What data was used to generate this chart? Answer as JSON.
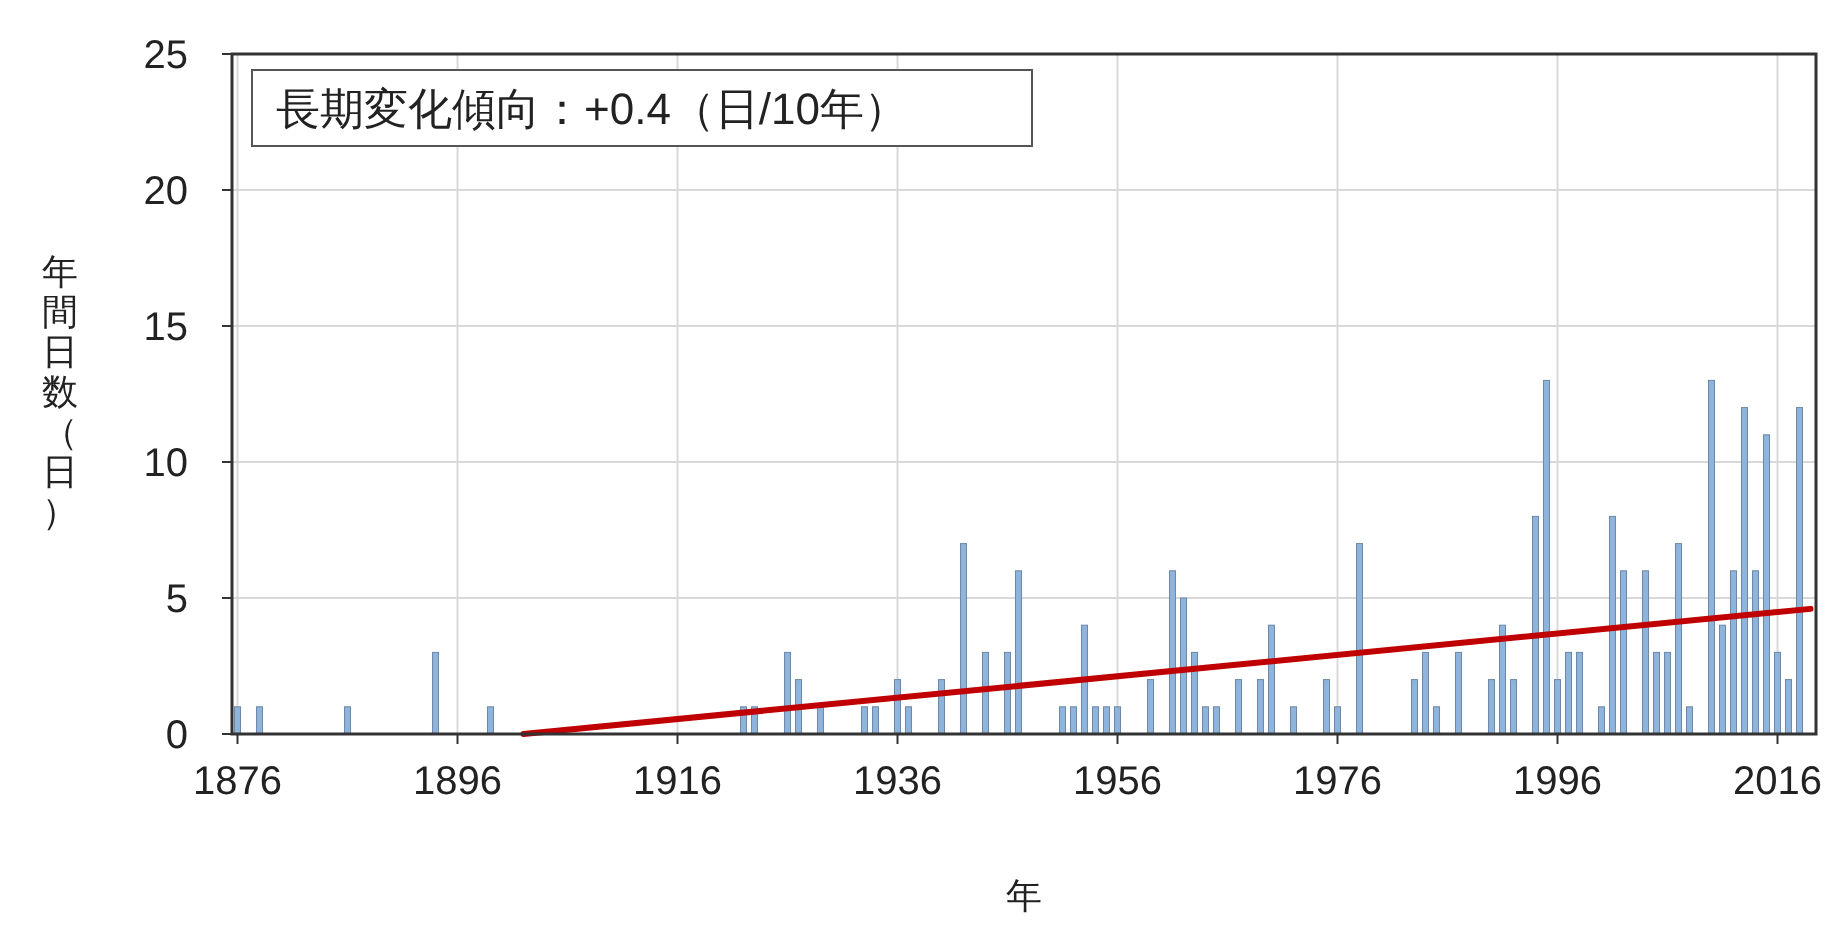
{
  "chart_data": {
    "type": "bar",
    "xlabel": "年",
    "ylabel": "年間日数（日）",
    "annotations": [
      "長期変化傾向：+0.4（日/10年）"
    ],
    "xlim": [
      1875.5,
      2019.5
    ],
    "xticks": [
      1876,
      1896,
      1916,
      1936,
      1956,
      1976,
      1996,
      2016
    ],
    "ylim": [
      0,
      25
    ],
    "yticks": [
      0,
      5,
      10,
      15,
      20,
      25
    ],
    "grid": true,
    "series": [
      {
        "color": "#8fb4dc",
        "x": [
          1876,
          1878,
          1886,
          1894,
          1899,
          1922,
          1923,
          1926,
          1927,
          1929,
          1933,
          1934,
          1936,
          1937,
          1940,
          1942,
          1944,
          1946,
          1947,
          1951,
          1952,
          1953,
          1954,
          1955,
          1956,
          1959,
          1961,
          1962,
          1963,
          1964,
          1965,
          1967,
          1969,
          1970,
          1972,
          1975,
          1976,
          1978,
          1983,
          1984,
          1985,
          1987,
          1990,
          1991,
          1992,
          1994,
          1995,
          1996,
          1997,
          1998,
          2000,
          2001,
          2002,
          2004,
          2005,
          2006,
          2007,
          2008,
          2010,
          2011,
          2012,
          2013,
          2014,
          2015,
          2016,
          2017,
          2018
        ],
        "values": [
          1,
          1,
          1,
          3,
          1,
          1,
          1,
          3,
          2,
          1,
          1,
          1,
          2,
          1,
          2,
          7,
          3,
          3,
          6,
          1,
          1,
          4,
          1,
          1,
          1,
          2,
          6,
          5,
          3,
          1,
          1,
          2,
          2,
          4,
          1,
          2,
          1,
          7,
          2,
          3,
          1,
          3,
          2,
          4,
          2,
          8,
          13,
          2,
          3,
          3,
          1,
          8,
          6,
          6,
          3,
          3,
          7,
          1,
          13,
          4,
          6,
          12,
          6,
          11,
          3,
          2,
          12
        ]
      },
      {
        "type": "line",
        "color": "#c00000",
        "x": [
          1902,
          2019
        ],
        "values": [
          0,
          4.6
        ]
      }
    ]
  }
}
